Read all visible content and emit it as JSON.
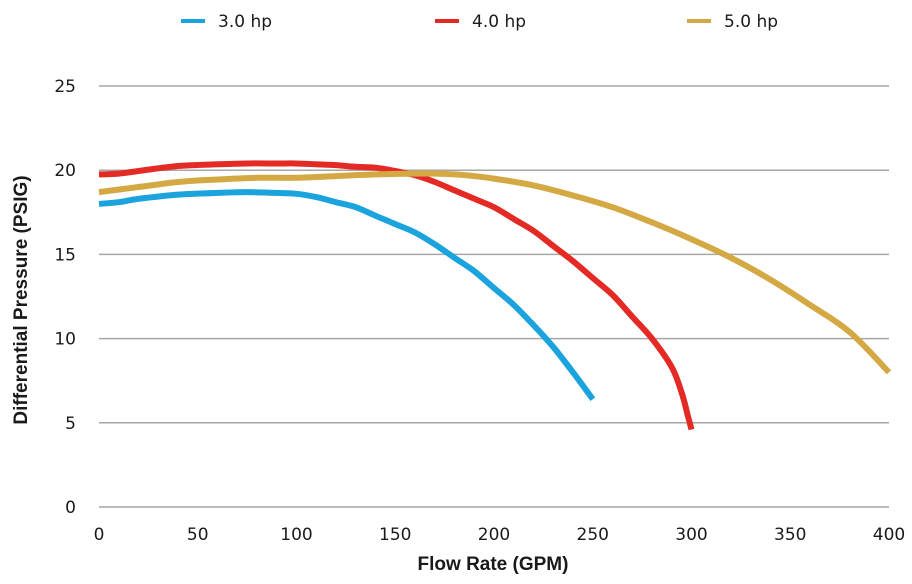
{
  "chart_data": {
    "type": "line",
    "title": "",
    "xlabel": "Flow Rate (GPM)",
    "ylabel": "Differential Pressure (PSIG)",
    "xlim": [
      0,
      400
    ],
    "ylim": [
      0,
      25
    ],
    "xticks": [
      "0",
      "50",
      "100",
      "150",
      "200",
      "250",
      "300",
      "350",
      "400"
    ],
    "yticks": [
      "0",
      "5",
      "10",
      "15",
      "20",
      "25"
    ],
    "grid": true,
    "legend_position": "top",
    "series": [
      {
        "name": "3.0 hp",
        "color": "#1aa3dc",
        "x": [
          0,
          10,
          20,
          40,
          60,
          75,
          90,
          100,
          110,
          120,
          130,
          140,
          150,
          160,
          170,
          180,
          190,
          200,
          210,
          220,
          230,
          240,
          250
        ],
        "y": [
          18.0,
          18.1,
          18.3,
          18.55,
          18.65,
          18.7,
          18.65,
          18.6,
          18.4,
          18.1,
          17.8,
          17.3,
          16.8,
          16.3,
          15.6,
          14.8,
          14.0,
          13.0,
          12.0,
          10.8,
          9.5,
          8.0,
          6.4
        ]
      },
      {
        "name": "4.0 hp",
        "color": "#e42a25",
        "x": [
          0,
          10,
          20,
          40,
          60,
          75,
          90,
          100,
          110,
          120,
          130,
          140,
          150,
          160,
          170,
          180,
          190,
          200,
          210,
          220,
          230,
          240,
          250,
          260,
          270,
          280,
          290,
          295,
          298,
          300
        ],
        "y": [
          19.75,
          19.8,
          19.95,
          20.25,
          20.35,
          20.4,
          20.4,
          20.4,
          20.35,
          20.3,
          20.2,
          20.15,
          19.95,
          19.7,
          19.3,
          18.8,
          18.3,
          17.8,
          17.1,
          16.4,
          15.5,
          14.6,
          13.6,
          12.6,
          11.3,
          10.0,
          8.3,
          6.8,
          5.5,
          4.6
        ]
      },
      {
        "name": "5.0 hp",
        "color": "#d4a843",
        "x": [
          0,
          20,
          40,
          60,
          80,
          100,
          120,
          140,
          160,
          170,
          180,
          190,
          200,
          220,
          240,
          260,
          280,
          300,
          320,
          340,
          360,
          380,
          400
        ],
        "y": [
          18.7,
          19.0,
          19.3,
          19.45,
          19.55,
          19.55,
          19.65,
          19.75,
          19.8,
          19.8,
          19.75,
          19.65,
          19.5,
          19.1,
          18.5,
          17.8,
          16.9,
          15.9,
          14.8,
          13.5,
          12.0,
          10.4,
          8.0
        ]
      }
    ]
  }
}
